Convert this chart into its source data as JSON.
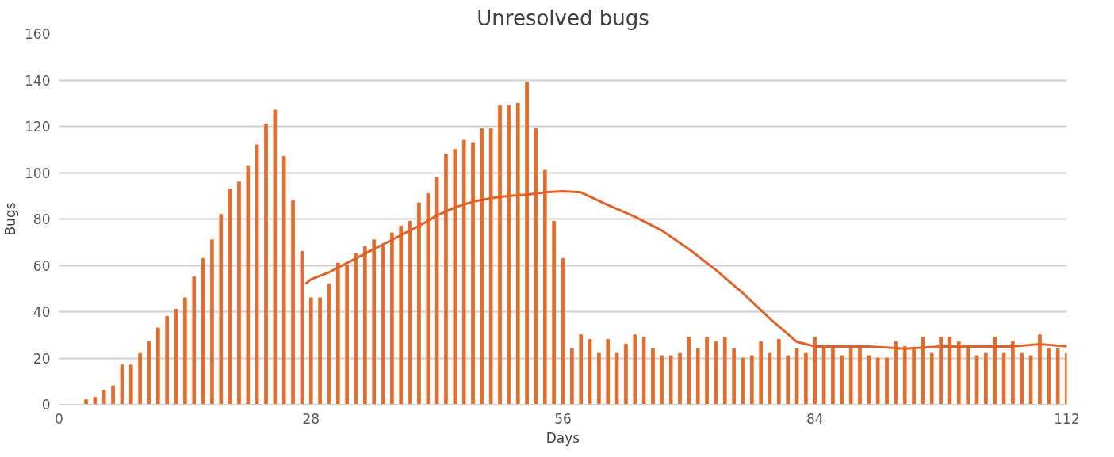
{
  "chart_data": {
    "type": "bar",
    "title": "Unresolved bugs",
    "xlabel": "Days",
    "ylabel": "Bugs",
    "x": [
      3,
      4,
      5,
      6,
      7,
      8,
      9,
      10,
      11,
      12,
      13,
      14,
      15,
      16,
      17,
      18,
      19,
      20,
      21,
      22,
      23,
      24,
      25,
      26,
      27,
      28,
      29,
      30,
      31,
      32,
      33,
      34,
      35,
      36,
      37,
      38,
      39,
      40,
      41,
      42,
      43,
      44,
      45,
      46,
      47,
      48,
      49,
      50,
      51,
      52,
      53,
      54,
      55,
      56,
      57,
      58,
      59,
      60,
      61,
      62,
      63,
      64,
      65,
      66,
      67,
      68,
      69,
      70,
      71,
      72,
      73,
      74,
      75,
      76,
      77,
      78,
      79,
      80,
      81,
      82,
      83,
      84,
      85,
      86,
      87,
      88,
      89,
      90,
      91,
      92,
      93,
      94,
      95,
      96,
      97,
      98,
      99,
      100,
      101,
      102,
      103,
      104,
      105,
      106,
      107,
      108,
      109,
      110,
      111,
      112
    ],
    "series": [
      {
        "color": "#e46c2b",
        "values": [
          2,
          3,
          6,
          8,
          17,
          17,
          22,
          27,
          33,
          38,
          41,
          46,
          55,
          63,
          71,
          82,
          93,
          96,
          103,
          112,
          121,
          127,
          107,
          88,
          66,
          46,
          46,
          52,
          61,
          60,
          65,
          68,
          71,
          68,
          74,
          77,
          79,
          87,
          91,
          98,
          108,
          110,
          114,
          113,
          119,
          119,
          129,
          129,
          130,
          139,
          119,
          101,
          79,
          63,
          24,
          30,
          28,
          22,
          28,
          22,
          26,
          30,
          29,
          24,
          21,
          21,
          22,
          29,
          24,
          29,
          27,
          29,
          24,
          20,
          21,
          27,
          22,
          28,
          21,
          24,
          22,
          29,
          25,
          24,
          21,
          24,
          24,
          21,
          20,
          20,
          27,
          25,
          24,
          29,
          22,
          29,
          29,
          27,
          24,
          21,
          22,
          29,
          22,
          27,
          22,
          21,
          30,
          24,
          24,
          22
        ]
      },
      {
        "type": "line",
        "color": "#e0612a",
        "x": [
          27.4,
          28,
          30,
          32,
          34,
          36,
          38,
          40,
          42,
          44,
          46,
          48,
          50,
          52,
          54,
          56,
          58,
          61,
          64,
          67,
          70,
          73,
          76,
          79,
          82,
          84,
          86,
          90,
          94,
          98,
          102,
          106,
          109,
          112
        ],
        "values": [
          52,
          54,
          57,
          61,
          65,
          69,
          73,
          77,
          81.5,
          85,
          87.5,
          89,
          90,
          90.5,
          91.5,
          92,
          91.5,
          86,
          81,
          75,
          67,
          58,
          48,
          37,
          27,
          25,
          25,
          25,
          24,
          25,
          25,
          25,
          26,
          25
        ]
      }
    ],
    "xlim": [
      0,
      112
    ],
    "xticks": [
      0,
      28,
      56,
      84,
      112
    ],
    "ylim": [
      0,
      160
    ],
    "yticks": [
      0,
      20,
      40,
      60,
      80,
      100,
      120,
      140,
      160
    ],
    "grid": "y"
  }
}
